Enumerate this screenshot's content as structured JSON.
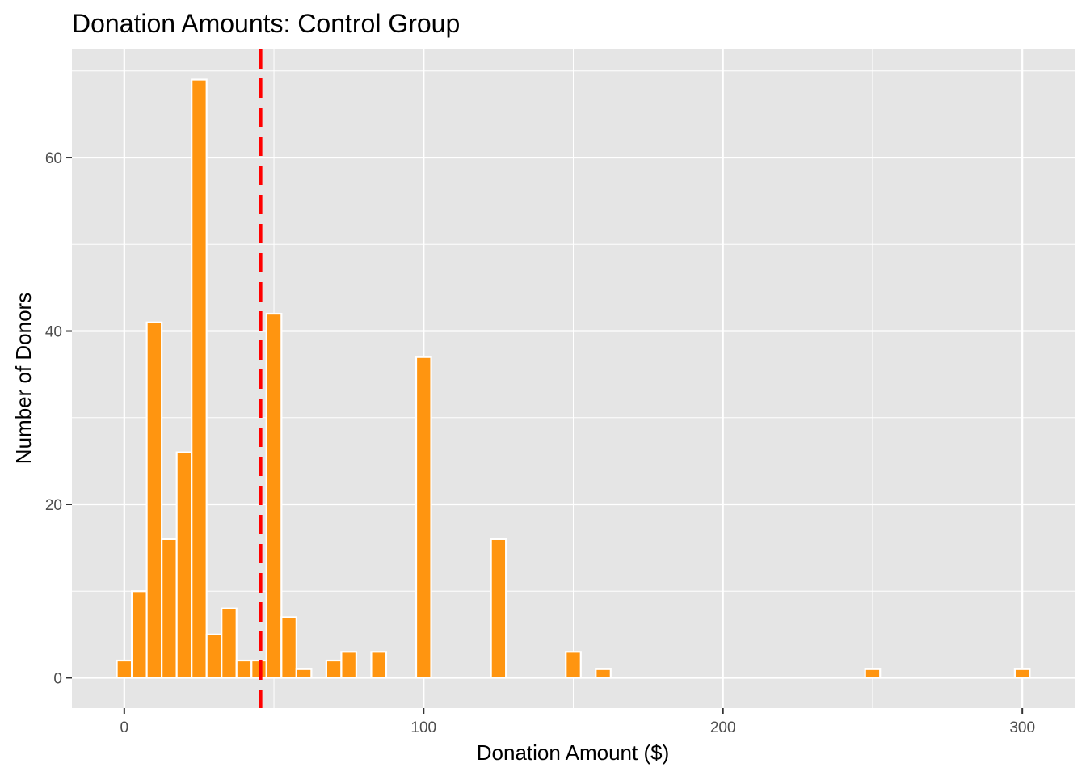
{
  "chart_data": {
    "type": "bar",
    "title": "Donation Amounts: Control Group",
    "xlabel": "Donation Amount ($)",
    "ylabel": "Number of Donors",
    "xlim": [
      -17.5,
      317.5
    ],
    "ylim": [
      -3.5,
      72.5
    ],
    "x_ticks": [
      0,
      100,
      200,
      300
    ],
    "y_ticks": [
      0,
      20,
      40,
      60
    ],
    "bin_width": 5,
    "grid": true,
    "legend": "none",
    "bins": [
      {
        "x": 0,
        "count": 2
      },
      {
        "x": 5,
        "count": 10
      },
      {
        "x": 10,
        "count": 41
      },
      {
        "x": 15,
        "count": 16
      },
      {
        "x": 20,
        "count": 26
      },
      {
        "x": 25,
        "count": 69
      },
      {
        "x": 30,
        "count": 5
      },
      {
        "x": 35,
        "count": 8
      },
      {
        "x": 40,
        "count": 2
      },
      {
        "x": 45,
        "count": 2
      },
      {
        "x": 50,
        "count": 42
      },
      {
        "x": 55,
        "count": 7
      },
      {
        "x": 60,
        "count": 1
      },
      {
        "x": 70,
        "count": 2
      },
      {
        "x": 75,
        "count": 3
      },
      {
        "x": 85,
        "count": 3
      },
      {
        "x": 100,
        "count": 37
      },
      {
        "x": 125,
        "count": 16
      },
      {
        "x": 150,
        "count": 3
      },
      {
        "x": 160,
        "count": 1
      },
      {
        "x": 250,
        "count": 1
      },
      {
        "x": 300,
        "count": 1
      }
    ],
    "mean_line_x": 45.5,
    "colors": {
      "bar_fill": "#FF9510",
      "bar_outline": "#FFFFFF",
      "mean_line": "#FF0000",
      "panel_background": "#E5E5E5",
      "grid": "#FFFFFF"
    }
  }
}
